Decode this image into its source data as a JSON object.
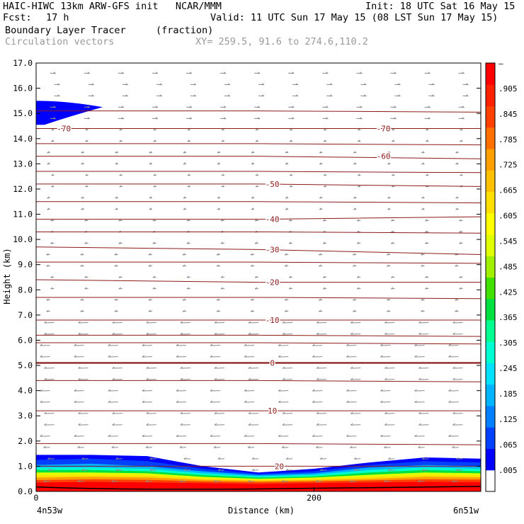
{
  "header": {
    "line1_left": "HAIC-HIWC 13km ARW-GFS init   NCAR/MMM",
    "line1_right": "Init: 18 UTC Sat 16 May 15",
    "fcst_label": "Fcst:",
    "fcst_value": "17 h",
    "valid": "Valid: 11 UTC Sun 17 May 15 (08 LST Sun 17 May 15)",
    "field_name": "Boundary Layer Tracer",
    "field_units": "(fraction)",
    "vector_label": "Circulation vectors",
    "xy_label": "XY= 259.5, 91.6 to 274.6,110.2"
  },
  "colors": {
    "vectors": "#8a8a8a",
    "isotherms": "#8b1a1a",
    "frame": "#000000"
  },
  "chart_data": {
    "type": "heatmap",
    "ylabel": "Height (km)",
    "xlabel": "Distance (km)",
    "x_left_label": "4n53w",
    "x_right_label": "6n51w",
    "x_ticks": [
      {
        "value": 0,
        "label": "0"
      },
      {
        "value": 200,
        "label": "200"
      }
    ],
    "xlim": [
      0,
      320
    ],
    "ylim": [
      0,
      17
    ],
    "y_ticks": [
      "0.0",
      "1.0",
      "2.0",
      "3.0",
      "4.0",
      "5.0",
      "6.0",
      "7.0",
      "8.0",
      "9.0",
      "10.0",
      "11.0",
      "12.0",
      "13.0",
      "14.0",
      "15.0",
      "16.0",
      "17.0"
    ],
    "colorbar": {
      "labels": [
        ".005",
        ".065",
        ".125",
        ".185",
        ".245",
        ".305",
        ".365",
        ".425",
        ".485",
        ".545",
        ".605",
        ".665",
        ".725",
        ".785",
        ".845",
        ".905",
        "–"
      ],
      "colors": [
        "#ffffff",
        "#0000ff",
        "#0040ff",
        "#0080ff",
        "#00b4ff",
        "#00e0ff",
        "#00ffd0",
        "#00ff90",
        "#00e040",
        "#40e000",
        "#a0f000",
        "#e0ff00",
        "#ffff00",
        "#ffe000",
        "#ffc000",
        "#ffa000",
        "#ff7000",
        "#ff4000",
        "#ff2000",
        "#ff0000"
      ]
    },
    "isotherms": [
      {
        "value": -70,
        "label": "-70",
        "heights": [
          14.4,
          14.4,
          14.4
        ]
      },
      {
        "value": -60,
        "label": "-60",
        "heights": [
          13.3,
          13.3,
          13.2
        ]
      },
      {
        "value": -50,
        "label": "-50",
        "heights": [
          12.2,
          12.2,
          12.1
        ]
      },
      {
        "value": -40,
        "label": "-40",
        "heights": [
          10.8,
          10.8,
          10.9
        ]
      },
      {
        "value": -30,
        "label": "-30",
        "heights": [
          9.7,
          9.6,
          9.4
        ]
      },
      {
        "value": -20,
        "label": "-20",
        "heights": [
          8.4,
          8.3,
          8.3
        ]
      },
      {
        "value": -10,
        "label": "-10",
        "heights": [
          6.8,
          6.8,
          6.8
        ]
      },
      {
        "value": 0,
        "label": "0",
        "heights": [
          5.1,
          5.1,
          5.1
        ]
      },
      {
        "value": 10,
        "label": "10",
        "heights": [
          3.2,
          3.2,
          3.2
        ]
      },
      {
        "value": 20,
        "label": "20",
        "heights": [
          1.0,
          1.0,
          1.0
        ]
      }
    ],
    "isotherm_lines_unlabeled": [
      15.1,
      13.8,
      12.7,
      11.5,
      10.3,
      9.1,
      7.7,
      6.2,
      5.9,
      4.4,
      1.9
    ]
  }
}
